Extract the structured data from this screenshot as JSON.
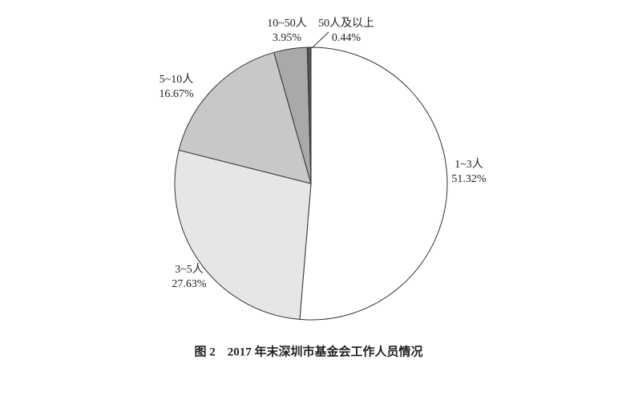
{
  "chart_data": {
    "type": "pie",
    "title": "图 2　2017 年末深圳市基金会工作人员情况",
    "categories": [
      "1~3人",
      "3~5人",
      "5~10人",
      "10~50人",
      "50人及以上"
    ],
    "values": [
      51.32,
      27.63,
      16.67,
      3.95,
      0.44
    ],
    "value_labels": [
      "51.32%",
      "27.63%",
      "16.67%",
      "3.95%",
      "0.44%"
    ],
    "colors": [
      "#ffffff",
      "#e6e6e6",
      "#c8c8c8",
      "#a9a9a9",
      "#555555"
    ]
  }
}
